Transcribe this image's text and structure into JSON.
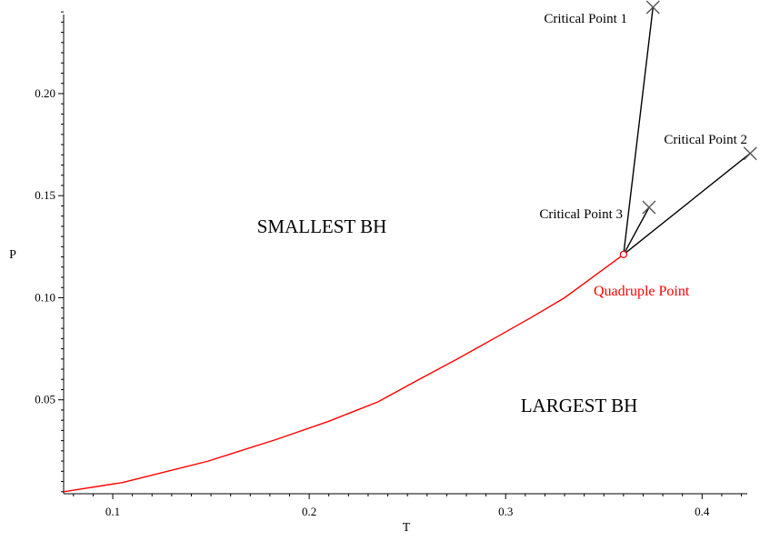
{
  "chart_data": {
    "type": "line",
    "xlabel": "T",
    "ylabel": "P",
    "xlim": [
      0.075,
      0.423
    ],
    "ylim": [
      0.004,
      0.2405
    ],
    "x_ticks": [
      "0.1",
      "0.2",
      "0.3",
      "0.4"
    ],
    "y_ticks": [
      "0.05",
      "0.10",
      "0.15",
      "0.20"
    ],
    "grid": false,
    "series": [
      {
        "color": "#ff0000",
        "points": [
          [
            0.075,
            0.005
          ],
          [
            0.105,
            0.0095
          ],
          [
            0.148,
            0.0198
          ],
          [
            0.183,
            0.0305
          ],
          [
            0.21,
            0.0395
          ],
          [
            0.235,
            0.049
          ],
          [
            0.255,
            0.0595
          ],
          [
            0.275,
            0.0698
          ],
          [
            0.295,
            0.0805
          ],
          [
            0.313,
            0.0903
          ],
          [
            0.33,
            0.1
          ],
          [
            0.36,
            0.1212
          ]
        ]
      },
      {
        "color": "#000000",
        "points": [
          [
            0.36,
            0.1212
          ],
          [
            0.375,
            0.2423
          ]
        ]
      },
      {
        "color": "#000000",
        "points": [
          [
            0.36,
            0.1212
          ],
          [
            0.4245,
            0.1707
          ]
        ]
      },
      {
        "color": "#000000",
        "points": [
          [
            0.36,
            0.1212
          ],
          [
            0.373,
            0.1443
          ]
        ]
      }
    ],
    "points": [
      {
        "label": "Critical Point 1",
        "x": 0.375,
        "y": 0.2423
      },
      {
        "label": "Critical Point 2",
        "x": 0.4245,
        "y": 0.1707
      },
      {
        "label": "Critical Point 3",
        "x": 0.373,
        "y": 0.1443
      }
    ],
    "special_point": {
      "label": "Quadruple Point",
      "x": 0.36,
      "y": 0.1212,
      "color": "#ff0000"
    },
    "regions": [
      {
        "label": "SMALLEST BH"
      },
      {
        "label": "LARGEST BH"
      }
    ]
  }
}
